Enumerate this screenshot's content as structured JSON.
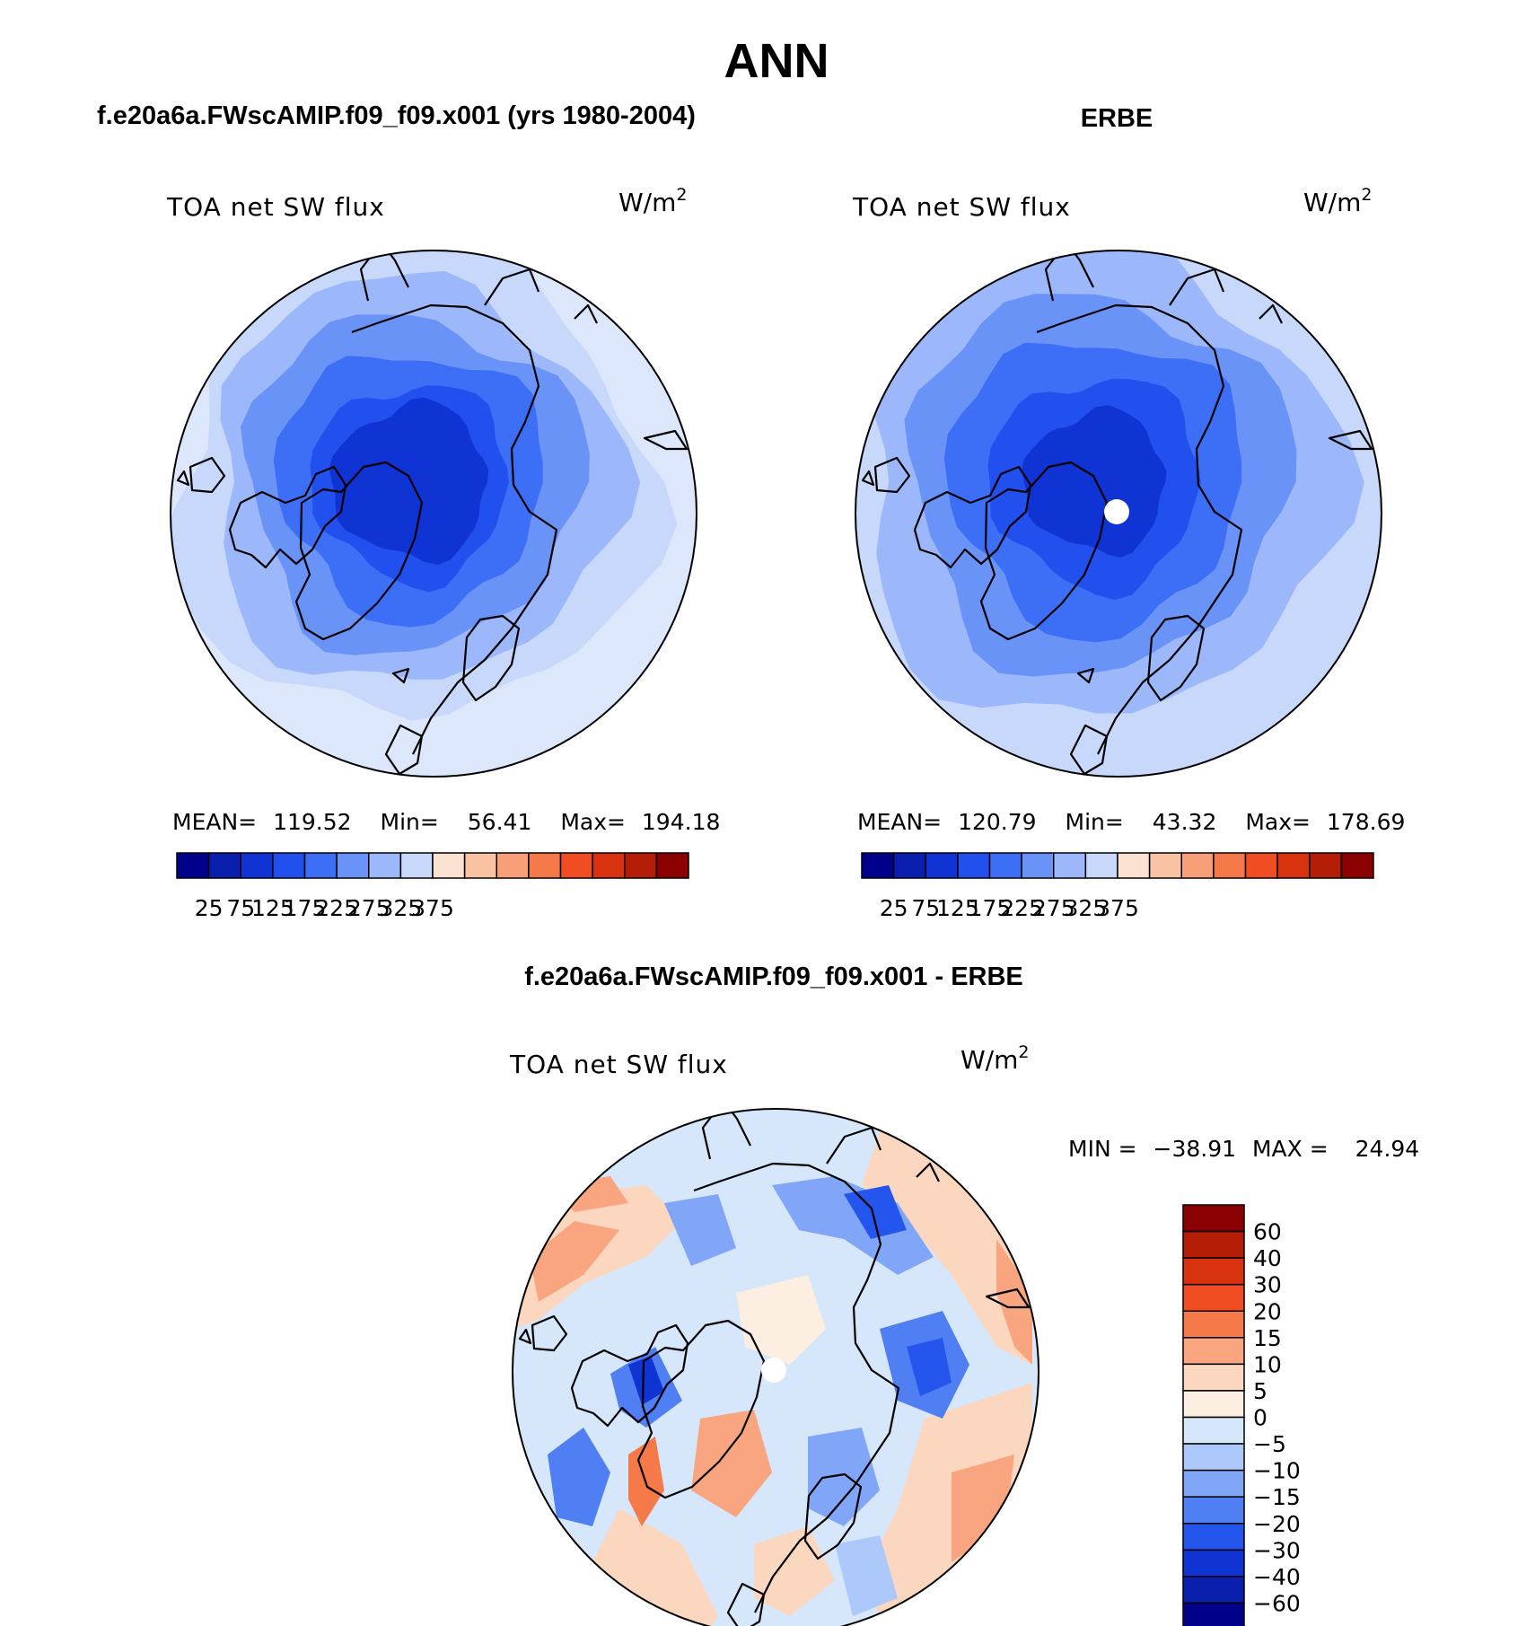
{
  "figure": {
    "title": "ANN",
    "subplot_titles": {
      "model": "f.e20a6a.FWscAMIP.f09_f09.x001 (yrs 1980-2004)",
      "obs": "ERBE",
      "diff": "f.e20a6a.FWscAMIP.f09_f09.x001 - ERBE"
    }
  },
  "chart_data": [
    {
      "type": "heatmap",
      "projection": "north polar stereographic",
      "panel": "model",
      "title": "f.e20a6a.FWscAMIP.f09_f09.x001 (yrs 1980-2004)",
      "variable": "TOA net SW flux",
      "units": "W/m",
      "units_exp": "2",
      "stats": {
        "mean_label": "MEAN=",
        "mean": "119.52",
        "min_label": "Min=",
        "min": "56.41",
        "max_label": "Max=",
        "max": "194.18"
      },
      "colorbar": {
        "tick_labels": [
          "25",
          "75",
          "125",
          "175",
          "225",
          "275",
          "325",
          "375"
        ],
        "colors": [
          "#00008b",
          "#0a1fae",
          "#1033d4",
          "#2150ee",
          "#3c6ff5",
          "#6a93f7",
          "#9cb8fa",
          "#c7d8fb",
          "#fbe1cf",
          "#f9c3a3",
          "#f7a077",
          "#f6794a",
          "#f04e22",
          "#d8320e",
          "#b41e07",
          "#8b0000"
        ]
      },
      "levels_drawn": [
        {
          "value": 175,
          "color": "#c7d8fb"
        },
        {
          "value": 150,
          "color": "#9cb8fa"
        },
        {
          "value": 125,
          "color": "#6a93f7"
        },
        {
          "value": 100,
          "color": "#3c6ff5"
        },
        {
          "value": 75,
          "color": "#2150ee"
        },
        {
          "value": 60,
          "color": "#1033d4"
        }
      ]
    },
    {
      "type": "heatmap",
      "projection": "north polar stereographic",
      "panel": "obs",
      "title": "ERBE",
      "variable": "TOA net SW flux",
      "units": "W/m",
      "units_exp": "2",
      "stats": {
        "mean_label": "MEAN=",
        "mean": "120.79",
        "min_label": "Min=",
        "min": "43.32",
        "max_label": "Max=",
        "max": "178.69"
      },
      "colorbar": {
        "tick_labels": [
          "25",
          "75",
          "125",
          "175",
          "225",
          "275",
          "325",
          "375"
        ],
        "colors": [
          "#00008b",
          "#0a1fae",
          "#1033d4",
          "#2150ee",
          "#3c6ff5",
          "#6a93f7",
          "#9cb8fa",
          "#c7d8fb",
          "#fbe1cf",
          "#f9c3a3",
          "#f7a077",
          "#f6794a",
          "#f04e22",
          "#d8320e",
          "#b41e07",
          "#8b0000"
        ]
      },
      "levels_drawn": [
        {
          "value": 175,
          "color": "#9cb8fa"
        },
        {
          "value": 140,
          "color": "#6a93f7"
        },
        {
          "value": 110,
          "color": "#3c6ff5"
        },
        {
          "value": 80,
          "color": "#2150ee"
        },
        {
          "value": 55,
          "color": "#1033d4"
        }
      ]
    },
    {
      "type": "heatmap",
      "projection": "north polar stereographic",
      "panel": "diff",
      "title": "f.e20a6a.FWscAMIP.f09_f09.x001 - ERBE",
      "variable": "TOA net SW flux",
      "units": "W/m",
      "units_exp": "2",
      "stats": {
        "min_label": "MIN =",
        "min": "−38.91",
        "max_label": "MAX =",
        "max": "24.94"
      },
      "colorbar": {
        "tick_labels": [
          "60",
          "40",
          "30",
          "20",
          "15",
          "10",
          "5",
          "0",
          "−5",
          "−10",
          "−15",
          "−20",
          "−30",
          "−40",
          "−60"
        ],
        "colors": [
          "#8b0000",
          "#b41e07",
          "#d8320e",
          "#f04e22",
          "#f6794a",
          "#f9a57f",
          "#fbd7c0",
          "#fdeee2",
          "#d6e6fb",
          "#adc8fa",
          "#82a6f7",
          "#4f7ff2",
          "#2456ee",
          "#1033d4",
          "#0a1fae",
          "#00008b"
        ]
      }
    }
  ]
}
